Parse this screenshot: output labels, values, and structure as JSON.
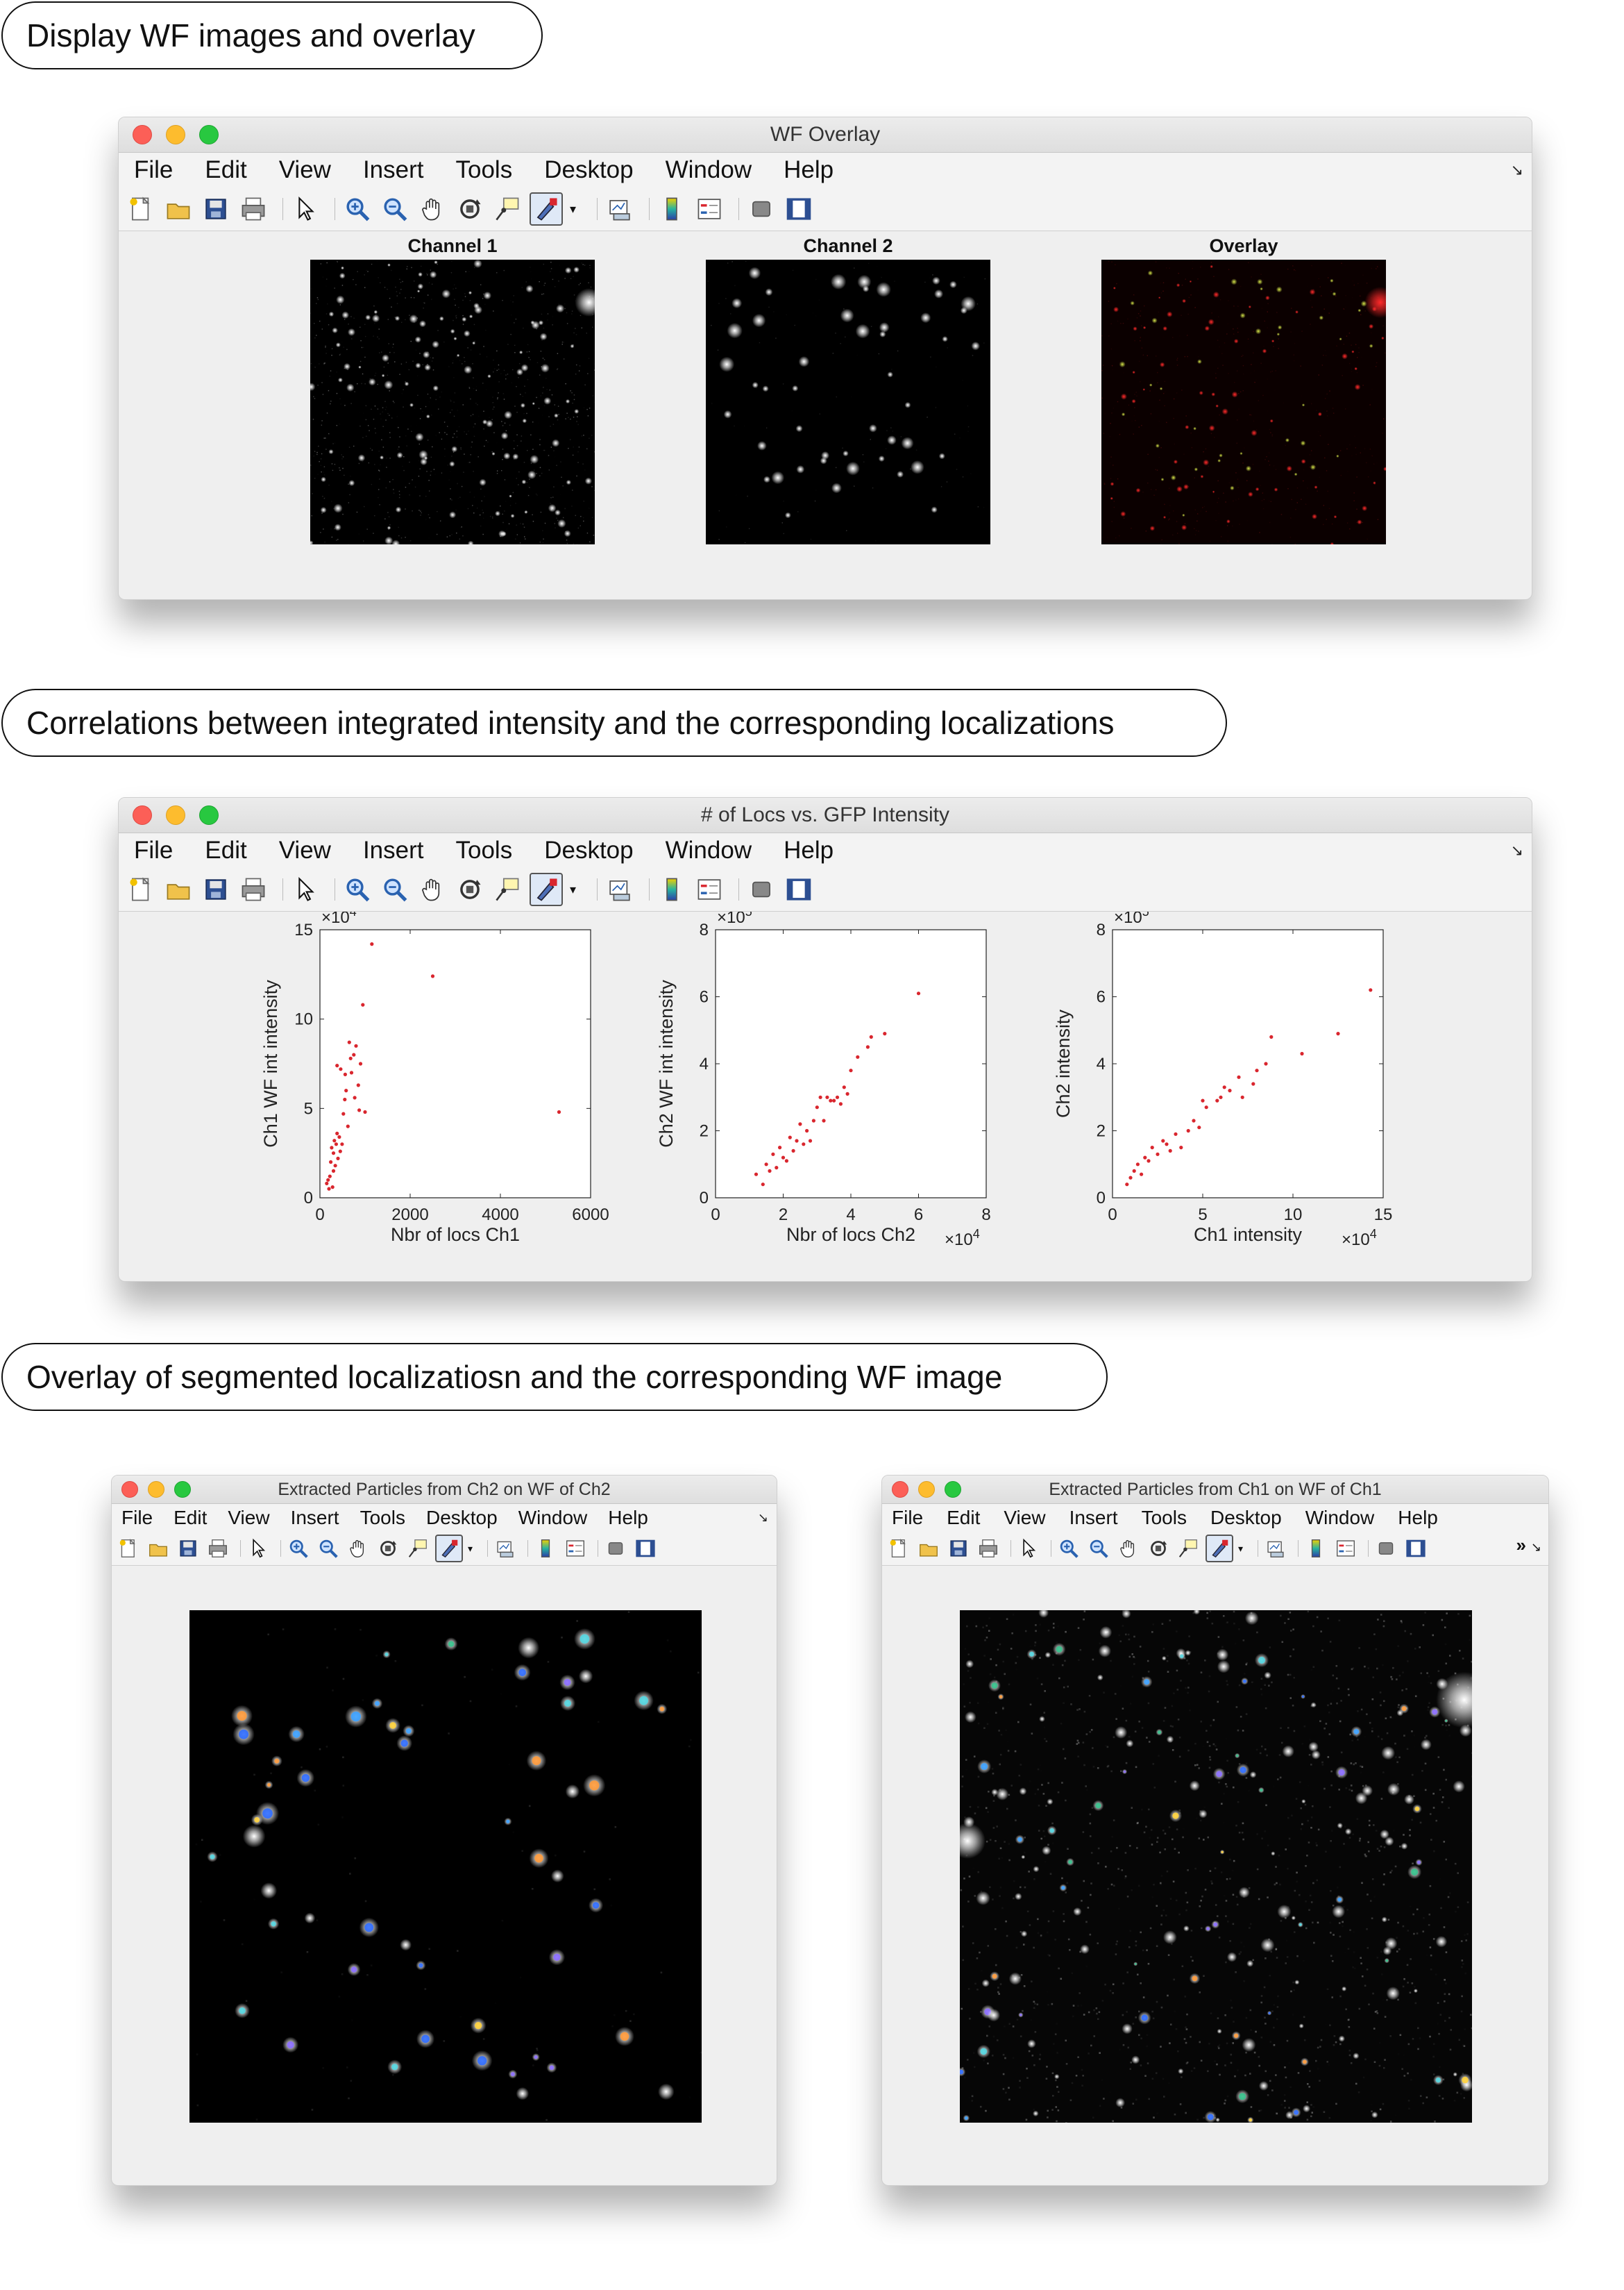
{
  "section_labels": {
    "first": "Display WF images and overlay",
    "second": "Correlations between integrated intensity and the corresponding localizations",
    "third": "Overlay of segmented localizatiosn and the corresponding WF image"
  },
  "menu_items": [
    "File",
    "Edit",
    "View",
    "Insert",
    "Tools",
    "Desktop",
    "Window",
    "Help"
  ],
  "toolbar_icons": [
    "new-figure-icon",
    "open-file-icon",
    "save-icon",
    "print-icon",
    "pointer-icon",
    "zoom-in-icon",
    "zoom-out-icon",
    "pan-icon",
    "rotate-3d-icon",
    "data-cursor-icon",
    "brush-icon",
    "link-plot-icon",
    "colorbar-icon",
    "legend-icon",
    "hide-plot-tools-icon",
    "show-plot-tools-icon"
  ],
  "overflow_chevron": "»",
  "windows": {
    "wf_overlay": {
      "title": "WF Overlay",
      "image_titles": [
        "Channel 1",
        "Channel 2",
        "Overlay"
      ]
    },
    "locs_vs_gfp": {
      "title": "# of Locs vs. GFP Intensity"
    },
    "extracted_ch2": {
      "title": "Extracted Particles from Ch2 on WF of Ch2"
    },
    "extracted_ch1": {
      "title": "Extracted Particles from Ch1 on WF of Ch1"
    }
  },
  "chart_data": [
    {
      "type": "scatter",
      "xlabel": "Nbr of locs Ch1",
      "ylabel": "Ch1 WF int intensity",
      "x_ticks": [
        "0",
        "2000",
        "4000",
        "6000"
      ],
      "y_ticks": [
        "0",
        "5",
        "10",
        "15"
      ],
      "xlim": [
        0,
        6000
      ],
      "ylim": [
        0,
        150000
      ],
      "y_multiplier_base": "×10",
      "y_multiplier_exp": "4",
      "x_multiplier_base": "",
      "x_multiplier_exp": "",
      "marker_color": "#d9262e",
      "series": [
        {
          "x": [
            150,
            180,
            200,
            220,
            240,
            260,
            280,
            300,
            320,
            340,
            360,
            380,
            400,
            430,
            460,
            490,
            520,
            550,
            580,
            620,
            650,
            700,
            750,
            800,
            850,
            900,
            950,
            1000,
            1150,
            2500,
            5300,
            300,
            380,
            450,
            560,
            680,
            770,
            870
          ],
          "y": [
            8000,
            10000,
            5000,
            12000,
            20000,
            28000,
            6000,
            25000,
            32000,
            18000,
            30000,
            74000,
            22000,
            34000,
            72000,
            30000,
            47000,
            55000,
            60000,
            40000,
            87000,
            70000,
            80000,
            85000,
            63000,
            75000,
            108000,
            48000,
            142000,
            124000,
            48000,
            15000,
            36000,
            26000,
            69000,
            78000,
            56000,
            49000
          ]
        }
      ]
    },
    {
      "type": "scatter",
      "xlabel": "Nbr of locs Ch2",
      "ylabel": "Ch2 WF int intensity",
      "x_ticks": [
        "0",
        "2",
        "4",
        "6",
        "8"
      ],
      "y_ticks": [
        "0",
        "2",
        "4",
        "6",
        "8"
      ],
      "xlim": [
        0,
        80000
      ],
      "ylim": [
        0,
        800000
      ],
      "y_multiplier_base": "×10",
      "y_multiplier_exp": "5",
      "x_multiplier_base": "×10",
      "x_multiplier_exp": "4",
      "marker_color": "#d9262e",
      "series": [
        {
          "x": [
            12000,
            14000,
            15000,
            16000,
            17000,
            18000,
            19000,
            20000,
            21000,
            22000,
            23000,
            24000,
            25000,
            26000,
            27000,
            28000,
            30000,
            31000,
            32000,
            33000,
            35000,
            36000,
            37000,
            38000,
            40000,
            42000,
            45000,
            46000,
            50000,
            60000,
            29000,
            34000,
            39000
          ],
          "y": [
            70000,
            40000,
            100000,
            80000,
            130000,
            90000,
            150000,
            120000,
            110000,
            180000,
            140000,
            170000,
            220000,
            160000,
            200000,
            170000,
            270000,
            300000,
            230000,
            300000,
            290000,
            300000,
            280000,
            330000,
            380000,
            420000,
            450000,
            480000,
            490000,
            610000,
            230000,
            290000,
            310000
          ]
        }
      ]
    },
    {
      "type": "scatter",
      "xlabel": "Ch1 intensity",
      "ylabel": "Ch2 intensity",
      "x_ticks": [
        "0",
        "5",
        "10",
        "15"
      ],
      "y_ticks": [
        "0",
        "2",
        "4",
        "6",
        "8"
      ],
      "xlim": [
        0,
        150000
      ],
      "ylim": [
        0,
        800000
      ],
      "y_multiplier_base": "×10",
      "y_multiplier_exp": "5",
      "x_multiplier_base": "×10",
      "x_multiplier_exp": "4",
      "marker_color": "#d9262e",
      "series": [
        {
          "x": [
            8000,
            10000,
            12000,
            14000,
            16000,
            18000,
            20000,
            22000,
            25000,
            28000,
            30000,
            32000,
            35000,
            38000,
            42000,
            45000,
            48000,
            50000,
            52000,
            58000,
            60000,
            62000,
            65000,
            70000,
            72000,
            78000,
            80000,
            85000,
            88000,
            105000,
            125000,
            143000
          ],
          "y": [
            40000,
            60000,
            80000,
            100000,
            70000,
            120000,
            110000,
            150000,
            130000,
            170000,
            160000,
            140000,
            190000,
            150000,
            200000,
            230000,
            210000,
            290000,
            270000,
            290000,
            300000,
            330000,
            320000,
            360000,
            300000,
            340000,
            380000,
            400000,
            480000,
            430000,
            490000,
            620000
          ]
        }
      ]
    }
  ]
}
